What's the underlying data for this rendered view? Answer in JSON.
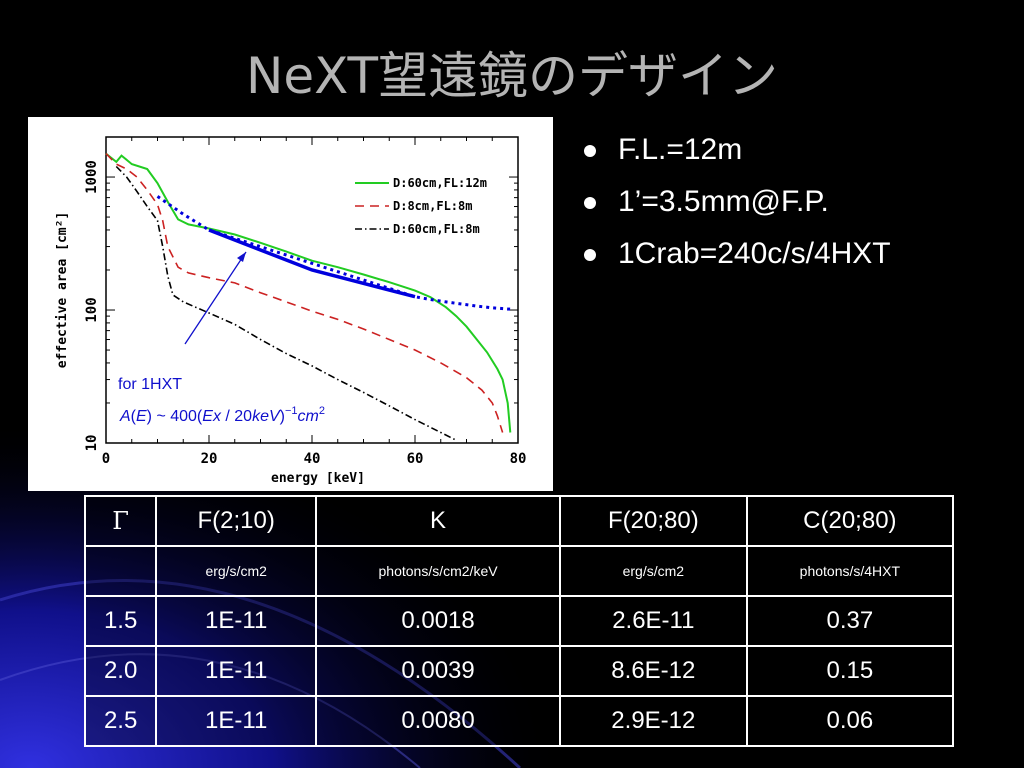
{
  "slide": {
    "title": "NeXT望遠鏡のデザイン"
  },
  "bullets": [
    "F.L.=12m",
    "1’=3.5mm@F.P.",
    "1Crab=240c/s/4HXT"
  ],
  "chart_data": {
    "type": "line",
    "xlabel": "energy [keV]",
    "ylabel": "effective area [cm²]",
    "xlim": [
      0,
      80
    ],
    "ylim": [
      10,
      2000
    ],
    "yscale": "log",
    "xticks": [
      0,
      20,
      40,
      60,
      80
    ],
    "yticks": [
      10,
      100,
      1000
    ],
    "legend_position": "top-right",
    "series": [
      {
        "name": "D:60cm,FL:12m",
        "style": "solid",
        "color": "#22cc22",
        "points": [
          [
            0,
            1500
          ],
          [
            2,
            1300
          ],
          [
            3,
            1450
          ],
          [
            5,
            1250
          ],
          [
            8,
            1150
          ],
          [
            10,
            900
          ],
          [
            12,
            650
          ],
          [
            14,
            480
          ],
          [
            16,
            440
          ],
          [
            20,
            410
          ],
          [
            25,
            370
          ],
          [
            30,
            320
          ],
          [
            35,
            275
          ],
          [
            40,
            235
          ],
          [
            45,
            210
          ],
          [
            50,
            185
          ],
          [
            55,
            162
          ],
          [
            60,
            140
          ],
          [
            63,
            125
          ],
          [
            66,
            105
          ],
          [
            68,
            90
          ],
          [
            70,
            75
          ],
          [
            72,
            60
          ],
          [
            74,
            48
          ],
          [
            76,
            36
          ],
          [
            77,
            30
          ],
          [
            78,
            20
          ],
          [
            78.5,
            12
          ]
        ]
      },
      {
        "name": "D:8cm,FL:8m",
        "style": "dashed",
        "color": "#cc2222",
        "points": [
          [
            0,
            1500
          ],
          [
            2,
            1250
          ],
          [
            4,
            1150
          ],
          [
            6,
            1000
          ],
          [
            8,
            800
          ],
          [
            10,
            620
          ],
          [
            11,
            470
          ],
          [
            12,
            300
          ],
          [
            14,
            210
          ],
          [
            16,
            190
          ],
          [
            20,
            175
          ],
          [
            25,
            160
          ],
          [
            30,
            135
          ],
          [
            35,
            115
          ],
          [
            40,
            98
          ],
          [
            45,
            85
          ],
          [
            50,
            72
          ],
          [
            55,
            60
          ],
          [
            60,
            50
          ],
          [
            65,
            40
          ],
          [
            70,
            31
          ],
          [
            73,
            25
          ],
          [
            75,
            20
          ],
          [
            76,
            16
          ],
          [
            77,
            12
          ]
        ]
      },
      {
        "name": "D:60cm,FL:8m",
        "style": "dashdot",
        "color": "#000000",
        "points": [
          [
            2,
            1200
          ],
          [
            4,
            1000
          ],
          [
            6,
            780
          ],
          [
            8,
            600
          ],
          [
            10,
            470
          ],
          [
            11,
            300
          ],
          [
            12,
            180
          ],
          [
            13,
            130
          ],
          [
            15,
            115
          ],
          [
            20,
            95
          ],
          [
            25,
            78
          ],
          [
            30,
            60
          ],
          [
            35,
            47
          ],
          [
            40,
            38
          ],
          [
            45,
            30
          ],
          [
            50,
            24
          ],
          [
            55,
            19
          ],
          [
            60,
            15
          ],
          [
            65,
            12
          ],
          [
            68,
            10.5
          ]
        ]
      }
    ],
    "overlay": {
      "color": "#0000dd",
      "solid_fit": [
        [
          20,
          400
        ],
        [
          40,
          200
        ],
        [
          60,
          126
        ]
      ],
      "dotted_extension": [
        [
          10,
          715
        ],
        [
          15,
          525
        ],
        [
          20,
          400
        ],
        [
          60,
          126
        ],
        [
          63,
          120
        ],
        [
          66,
          115
        ],
        [
          69,
          111
        ],
        [
          72,
          107
        ],
        [
          75,
          104
        ],
        [
          79,
          101
        ]
      ],
      "annotation_label": "for  1HXT",
      "formula": {
        "a": "A",
        "e": "E",
        "mid": ") ~ 400(",
        "ex": "Ex",
        "div": " / 20",
        "kev": "keV",
        "close": ")",
        "exp": "−1",
        "cm": "cm",
        "sq": "2"
      }
    }
  },
  "table": {
    "headers": [
      "Γ",
      "F(2;10)",
      "K",
      "F(20;80)",
      "C(20;80)"
    ],
    "units": [
      "",
      "erg/s/cm2",
      "photons/s/cm2/keV",
      "erg/s/cm2",
      "photons/s/4HXT"
    ],
    "rows": [
      [
        "1.5",
        "1E-11",
        "0.0018",
        "2.6E-11",
        "0.37"
      ],
      [
        "2.0",
        "1E-11",
        "0.0039",
        "8.6E-12",
        "0.15"
      ],
      [
        "2.5",
        "1E-11",
        "0.0080",
        "2.9E-12",
        "0.06"
      ]
    ]
  }
}
